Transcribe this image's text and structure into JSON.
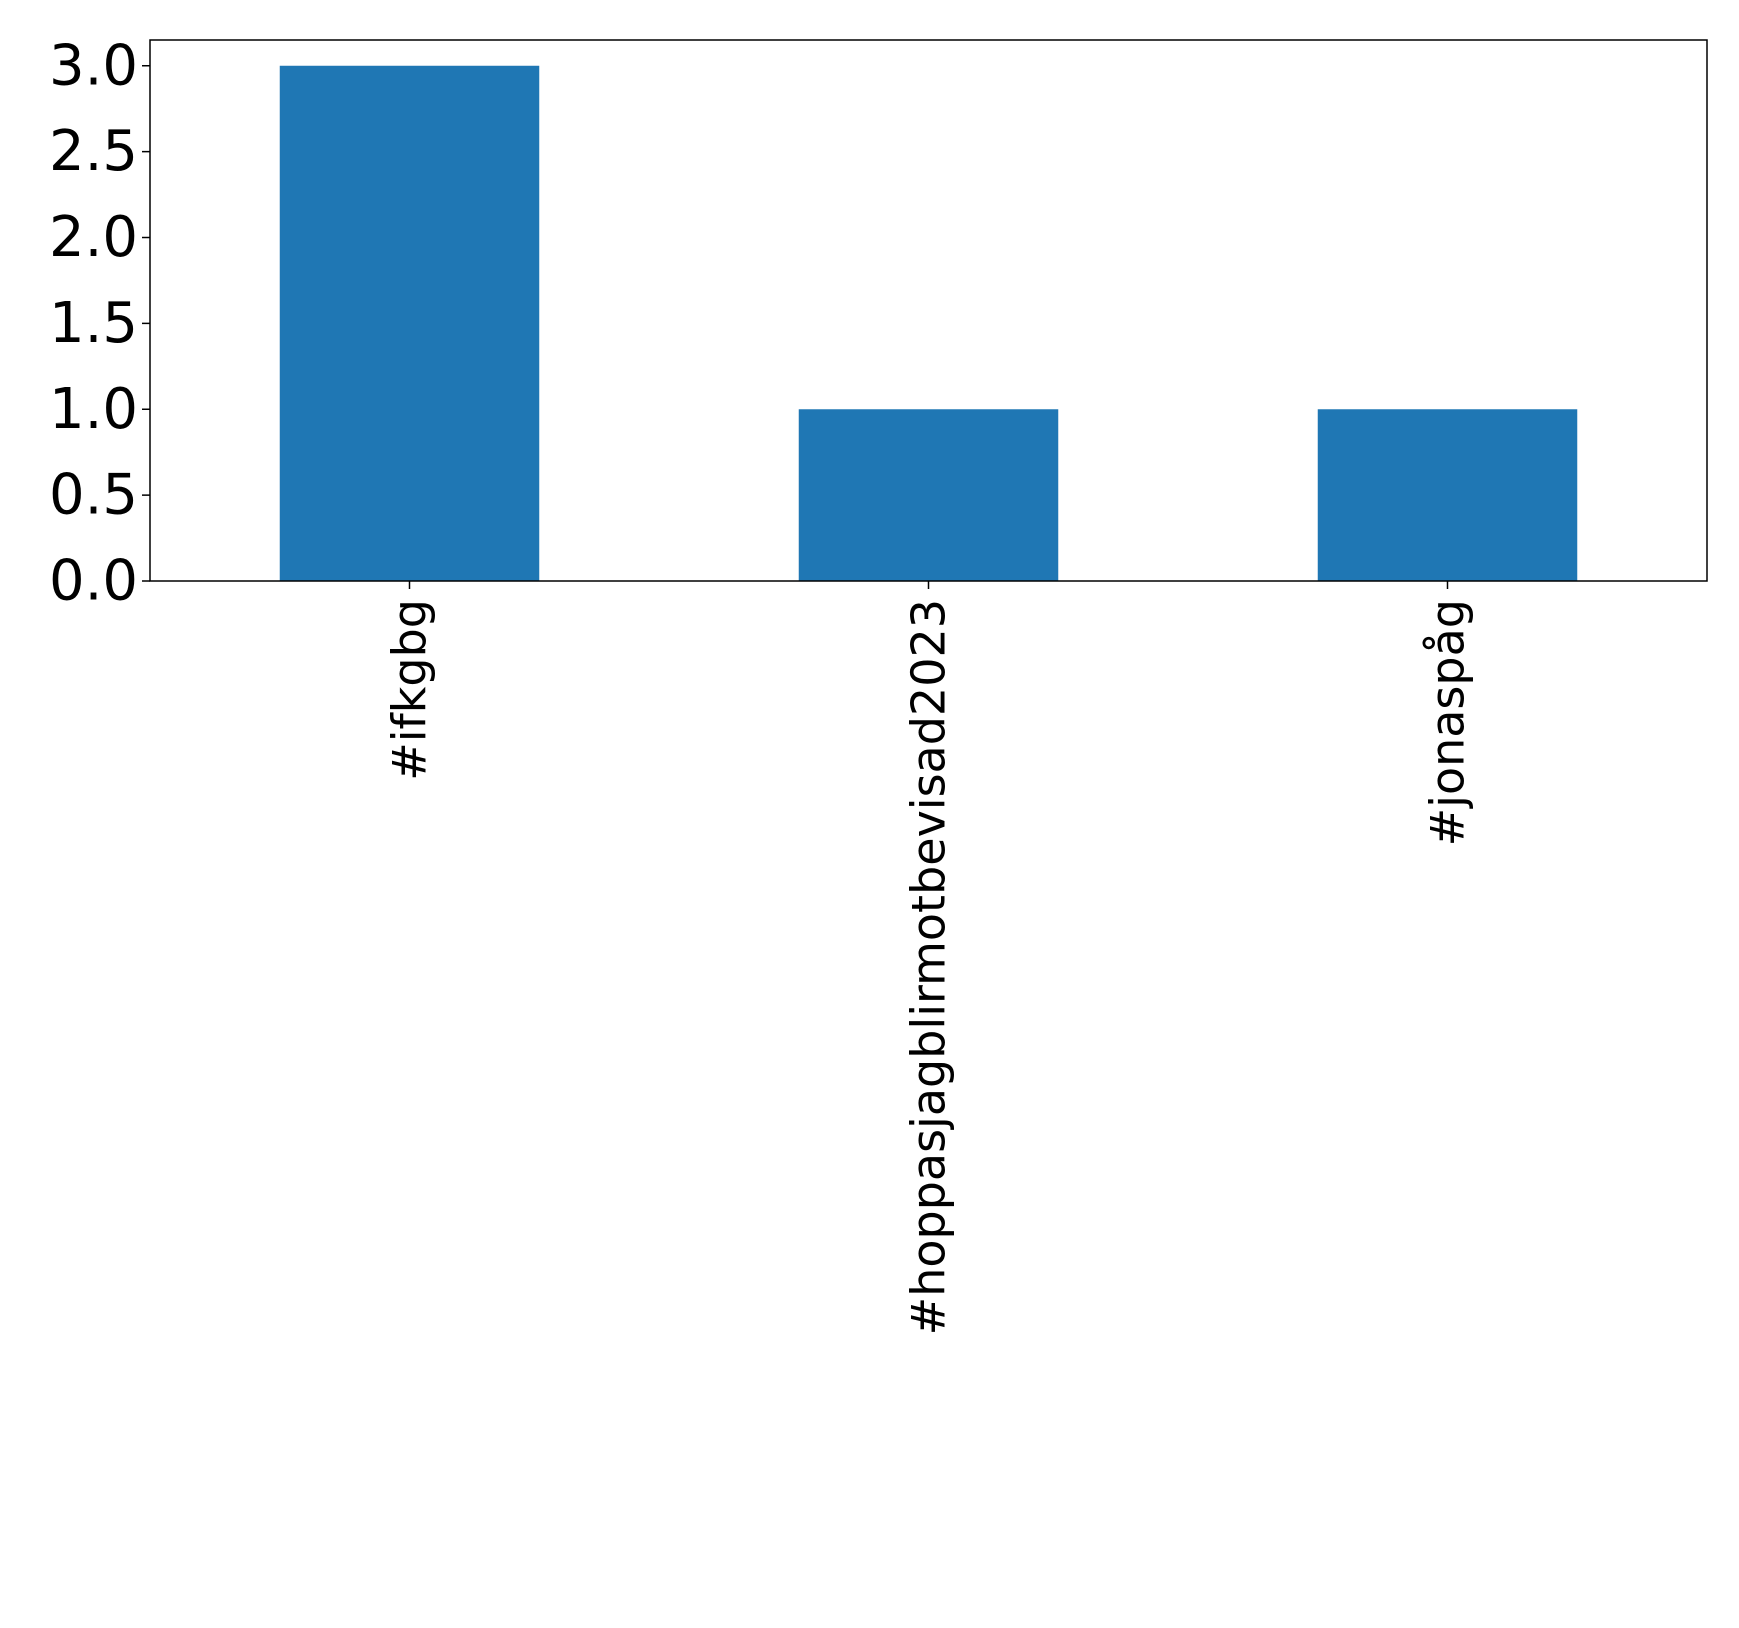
{
  "chart_data": {
    "type": "bar",
    "categories": [
      "#ifkgbg",
      "#hoppasjagblirmotbevisad2023",
      "#jonaspåg"
    ],
    "values": [
      3,
      1,
      1
    ],
    "title": "",
    "xlabel": "",
    "ylabel": "",
    "ylim": [
      0,
      3.15
    ],
    "yticks": [
      "0.0",
      "0.5",
      "1.0",
      "1.5",
      "2.0",
      "2.5",
      "3.0"
    ],
    "grid": false,
    "legend": "none",
    "bar_color": "#1f77b4"
  }
}
